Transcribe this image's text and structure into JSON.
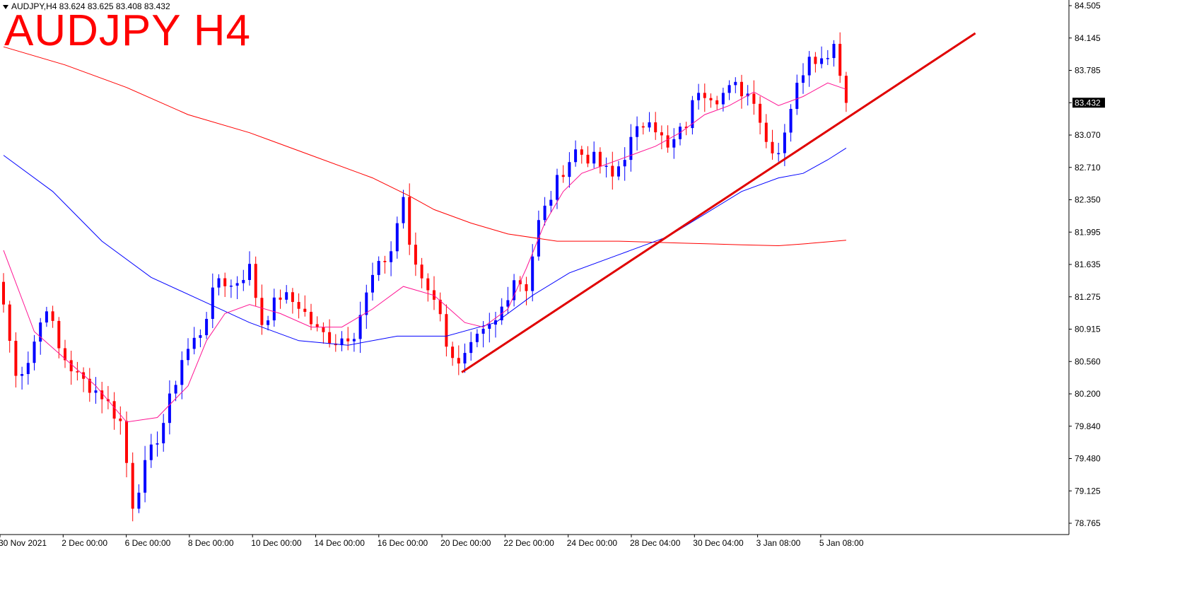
{
  "header": {
    "symbol_line": "AUDJPY,H4  83.624 83.625 83.408 83.432",
    "title": "AUDJPY H4"
  },
  "colors": {
    "bull": "#0000ff",
    "bear": "#ff0000",
    "ma_fast": "#ff1493",
    "ma_mid": "#0000ff",
    "ma_slow": "#ff0000",
    "trendline": "#e00000",
    "axis": "#000000",
    "price_tag_bg": "#000000"
  },
  "chart_data": {
    "type": "candlestick",
    "symbol": "AUDJPY",
    "timeframe": "H4",
    "current_price": "83.432",
    "ylim": [
      78.6,
      84.6
    ],
    "y_ticks": [
      "84.505",
      "84.145",
      "83.785",
      "83.432",
      "83.070",
      "82.710",
      "82.350",
      "81.995",
      "81.635",
      "81.275",
      "80.915",
      "80.560",
      "80.200",
      "79.840",
      "79.480",
      "79.125",
      "78.765"
    ],
    "x_ticks": [
      "30 Nov 2021",
      "2 Dec 00:00",
      "6 Dec 00:00",
      "8 Dec 00:00",
      "10 Dec 00:00",
      "14 Dec 00:00",
      "16 Dec 00:00",
      "20 Dec 00:00",
      "22 Dec 00:00",
      "24 Dec 00:00",
      "28 Dec 04:00",
      "30 Dec 04:00",
      "3 Jan 08:00",
      "5 Jan 08:00"
    ],
    "anchors": [
      {
        "i": 0,
        "c": 81.2
      },
      {
        "i": 2,
        "c": 80.4
      },
      {
        "i": 4,
        "c": 80.6
      },
      {
        "i": 7,
        "c": 81.2
      },
      {
        "i": 9,
        "c": 80.7
      },
      {
        "i": 12,
        "c": 80.4
      },
      {
        "i": 16,
        "c": 80.2
      },
      {
        "i": 19,
        "c": 79.9
      },
      {
        "i": 21,
        "c": 79.0
      },
      {
        "i": 23,
        "c": 79.4
      },
      {
        "i": 26,
        "c": 79.9
      },
      {
        "i": 29,
        "c": 80.6
      },
      {
        "i": 32,
        "c": 80.9
      },
      {
        "i": 35,
        "c": 81.5
      },
      {
        "i": 37,
        "c": 81.4
      },
      {
        "i": 40,
        "c": 81.6
      },
      {
        "i": 42,
        "c": 81.0
      },
      {
        "i": 45,
        "c": 81.3
      },
      {
        "i": 48,
        "c": 81.2
      },
      {
        "i": 51,
        "c": 80.9
      },
      {
        "i": 54,
        "c": 80.8
      },
      {
        "i": 57,
        "c": 80.9
      },
      {
        "i": 60,
        "c": 81.5
      },
      {
        "i": 63,
        "c": 81.8
      },
      {
        "i": 65,
        "c": 82.4
      },
      {
        "i": 66,
        "c": 81.8
      },
      {
        "i": 68,
        "c": 81.5
      },
      {
        "i": 70,
        "c": 81.3
      },
      {
        "i": 72,
        "c": 80.8
      },
      {
        "i": 74,
        "c": 80.5
      },
      {
        "i": 77,
        "c": 80.8
      },
      {
        "i": 80,
        "c": 81.0
      },
      {
        "i": 83,
        "c": 81.5
      },
      {
        "i": 85,
        "c": 81.4
      },
      {
        "i": 87,
        "c": 82.1
      },
      {
        "i": 89,
        "c": 82.4
      },
      {
        "i": 91,
        "c": 82.7
      },
      {
        "i": 93,
        "c": 82.9
      },
      {
        "i": 96,
        "c": 82.8
      },
      {
        "i": 99,
        "c": 82.6
      },
      {
        "i": 102,
        "c": 83.0
      },
      {
        "i": 105,
        "c": 83.3
      },
      {
        "i": 108,
        "c": 82.9
      },
      {
        "i": 111,
        "c": 83.2
      },
      {
        "i": 113,
        "c": 83.6
      },
      {
        "i": 116,
        "c": 83.5
      },
      {
        "i": 119,
        "c": 83.6
      },
      {
        "i": 122,
        "c": 83.5
      },
      {
        "i": 124,
        "c": 83.0
      },
      {
        "i": 126,
        "c": 82.9
      },
      {
        "i": 128,
        "c": 83.4
      },
      {
        "i": 131,
        "c": 84.0
      },
      {
        "i": 133,
        "c": 83.9
      },
      {
        "i": 135,
        "c": 84.1
      },
      {
        "i": 136,
        "c": 83.8
      },
      {
        "i": 137,
        "c": 83.43
      }
    ],
    "ma_fast": [
      [
        0,
        81.8
      ],
      [
        5,
        80.9
      ],
      [
        10,
        80.6
      ],
      [
        15,
        80.3
      ],
      [
        20,
        79.9
      ],
      [
        25,
        79.95
      ],
      [
        30,
        80.3
      ],
      [
        33,
        80.8
      ],
      [
        36,
        81.1
      ],
      [
        40,
        81.2
      ],
      [
        45,
        81.1
      ],
      [
        50,
        80.95
      ],
      [
        55,
        80.95
      ],
      [
        60,
        81.15
      ],
      [
        65,
        81.4
      ],
      [
        70,
        81.3
      ],
      [
        75,
        81.0
      ],
      [
        78,
        80.95
      ],
      [
        82,
        81.15
      ],
      [
        85,
        81.6
      ],
      [
        88,
        82.1
      ],
      [
        91,
        82.45
      ],
      [
        94,
        82.65
      ],
      [
        98,
        82.75
      ],
      [
        102,
        82.85
      ],
      [
        106,
        82.95
      ],
      [
        110,
        83.1
      ],
      [
        114,
        83.3
      ],
      [
        118,
        83.4
      ],
      [
        122,
        83.55
      ],
      [
        126,
        83.4
      ],
      [
        130,
        83.5
      ],
      [
        134,
        83.65
      ],
      [
        137,
        83.58
      ]
    ],
    "ma_mid": [
      [
        0,
        82.85
      ],
      [
        8,
        82.45
      ],
      [
        16,
        81.9
      ],
      [
        24,
        81.5
      ],
      [
        32,
        81.25
      ],
      [
        40,
        81.0
      ],
      [
        48,
        80.8
      ],
      [
        56,
        80.75
      ],
      [
        64,
        80.85
      ],
      [
        72,
        80.85
      ],
      [
        80,
        81.0
      ],
      [
        86,
        81.3
      ],
      [
        92,
        81.55
      ],
      [
        100,
        81.75
      ],
      [
        108,
        81.95
      ],
      [
        114,
        82.2
      ],
      [
        120,
        82.45
      ],
      [
        126,
        82.6
      ],
      [
        130,
        82.65
      ],
      [
        134,
        82.8
      ],
      [
        137,
        82.93
      ]
    ],
    "ma_slow": [
      [
        0,
        84.05
      ],
      [
        10,
        83.85
      ],
      [
        20,
        83.6
      ],
      [
        30,
        83.3
      ],
      [
        40,
        83.1
      ],
      [
        50,
        82.85
      ],
      [
        60,
        82.6
      ],
      [
        66,
        82.4
      ],
      [
        70,
        82.25
      ],
      [
        76,
        82.1
      ],
      [
        82,
        81.98
      ],
      [
        90,
        81.9
      ],
      [
        100,
        81.9
      ],
      [
        110,
        81.88
      ],
      [
        120,
        81.86
      ],
      [
        126,
        81.85
      ],
      [
        130,
        81.87
      ],
      [
        137,
        81.91
      ]
    ],
    "trendline": {
      "start": [
        74.5,
        80.45
      ],
      "end": [
        158,
        84.2
      ]
    }
  }
}
